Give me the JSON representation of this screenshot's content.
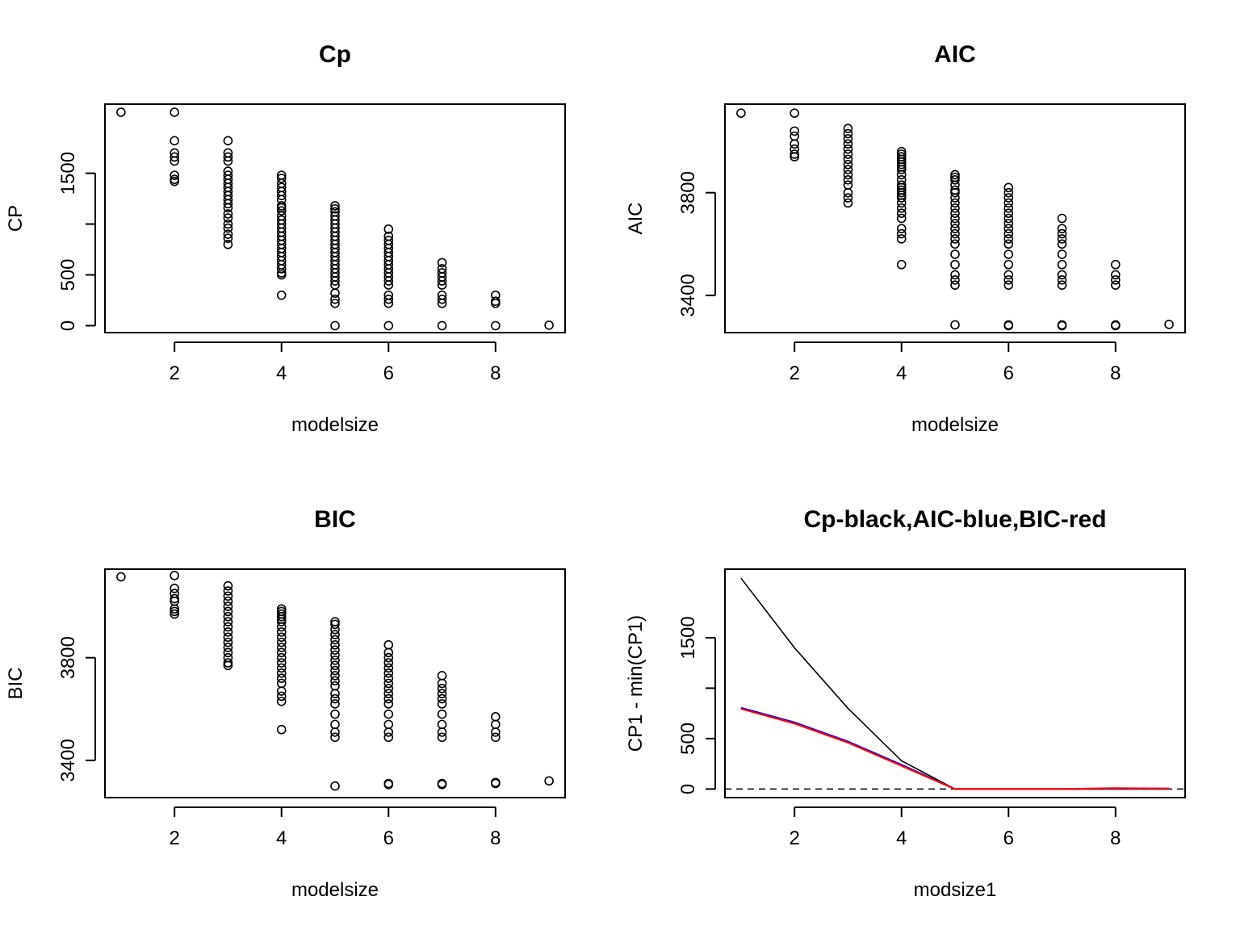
{
  "chart_data": [
    {
      "type": "scatter",
      "title": "Cp",
      "xlabel": "modelsize",
      "ylabel": "CP",
      "xlim": [
        0.7,
        9.3
      ],
      "ylim": [
        -68,
        2180
      ],
      "xticks": [
        "2",
        "4",
        "6",
        "8"
      ],
      "yticks": [
        "0",
        "500",
        "1500"
      ],
      "points": [
        {
          "x": 1,
          "y": [
            2100
          ]
        },
        {
          "x": 2,
          "y": [
            2100,
            1820,
            1700,
            1660,
            1620,
            1480,
            1440,
            1420
          ]
        },
        {
          "x": 3,
          "y": [
            1820,
            1700,
            1660,
            1620,
            1520,
            1480,
            1440,
            1400,
            1360,
            1320,
            1280,
            1240,
            1200,
            1160,
            1100,
            1060,
            1000,
            960,
            900,
            860,
            800
          ]
        },
        {
          "x": 4,
          "y": [
            1480,
            1450,
            1400,
            1360,
            1320,
            1280,
            1240,
            1180,
            1160,
            1130,
            1080,
            1040,
            1000,
            960,
            920,
            880,
            840,
            800,
            760,
            720,
            680,
            640,
            600,
            560,
            520,
            500,
            300
          ]
        },
        {
          "x": 5,
          "y": [
            1180,
            1150,
            1120,
            1080,
            1040,
            1000,
            960,
            920,
            880,
            840,
            800,
            760,
            720,
            680,
            640,
            600,
            560,
            520,
            480,
            440,
            400,
            320,
            260,
            220,
            0
          ]
        },
        {
          "x": 6,
          "y": [
            950,
            880,
            840,
            800,
            760,
            720,
            680,
            640,
            600,
            560,
            520,
            480,
            440,
            400,
            300,
            260,
            220,
            0
          ]
        },
        {
          "x": 7,
          "y": [
            620,
            560,
            520,
            480,
            440,
            400,
            300,
            260,
            220,
            0
          ]
        },
        {
          "x": 8,
          "y": [
            300,
            240,
            220,
            0
          ]
        },
        {
          "x": 9,
          "y": [
            5
          ]
        }
      ]
    },
    {
      "type": "scatter",
      "title": "AIC",
      "xlabel": "modelsize",
      "ylabel": "AIC",
      "xlim": [
        0.7,
        9.3
      ],
      "ylim": [
        3255,
        4145
      ],
      "xticks": [
        "2",
        "4",
        "6",
        "8"
      ],
      "yticks": [
        "3400",
        "3800"
      ],
      "points": [
        {
          "x": 1,
          "y": [
            4110
          ]
        },
        {
          "x": 2,
          "y": [
            4110,
            4040,
            4020,
            3990,
            3970,
            3950,
            3940
          ]
        },
        {
          "x": 3,
          "y": [
            4050,
            4030,
            4010,
            3990,
            3970,
            3950,
            3930,
            3910,
            3890,
            3870,
            3850,
            3830,
            3800,
            3780,
            3760
          ]
        },
        {
          "x": 4,
          "y": [
            3960,
            3950,
            3940,
            3930,
            3920,
            3910,
            3900,
            3890,
            3870,
            3850,
            3830,
            3820,
            3810,
            3800,
            3790,
            3780,
            3760,
            3740,
            3720,
            3700,
            3660,
            3640,
            3620,
            3520
          ]
        },
        {
          "x": 5,
          "y": [
            3870,
            3860,
            3850,
            3830,
            3810,
            3800,
            3780,
            3760,
            3740,
            3720,
            3700,
            3680,
            3660,
            3640,
            3620,
            3600,
            3560,
            3520,
            3480,
            3460,
            3440,
            3285
          ]
        },
        {
          "x": 6,
          "y": [
            3820,
            3800,
            3780,
            3760,
            3740,
            3720,
            3700,
            3680,
            3660,
            3640,
            3620,
            3600,
            3560,
            3520,
            3480,
            3460,
            3440,
            3285,
            3282
          ]
        },
        {
          "x": 7,
          "y": [
            3700,
            3660,
            3640,
            3620,
            3600,
            3560,
            3520,
            3480,
            3460,
            3440,
            3285,
            3282
          ]
        },
        {
          "x": 8,
          "y": [
            3520,
            3480,
            3460,
            3440,
            3285,
            3282
          ]
        },
        {
          "x": 9,
          "y": [
            3287
          ]
        }
      ]
    },
    {
      "type": "scatter",
      "title": "BIC",
      "xlabel": "modelsize",
      "ylabel": "BIC",
      "xlim": [
        0.7,
        9.3
      ],
      "ylim": [
        3255,
        4145
      ],
      "xticks": [
        "2",
        "4",
        "6",
        "8"
      ],
      "yticks": [
        "3400",
        "3800"
      ],
      "points": [
        {
          "x": 1,
          "y": [
            4115
          ]
        },
        {
          "x": 2,
          "y": [
            4120,
            4070,
            4050,
            4030,
            4020,
            3990,
            3980,
            3970
          ]
        },
        {
          "x": 3,
          "y": [
            4080,
            4060,
            4040,
            4020,
            4000,
            3980,
            3960,
            3940,
            3920,
            3900,
            3880,
            3860,
            3840,
            3820,
            3800,
            3780,
            3770
          ]
        },
        {
          "x": 4,
          "y": [
            3990,
            3980,
            3970,
            3960,
            3950,
            3940,
            3920,
            3900,
            3880,
            3860,
            3840,
            3820,
            3800,
            3780,
            3760,
            3740,
            3720,
            3700,
            3670,
            3650,
            3630,
            3520
          ]
        },
        {
          "x": 5,
          "y": [
            3940,
            3930,
            3910,
            3890,
            3870,
            3850,
            3830,
            3810,
            3790,
            3770,
            3750,
            3730,
            3710,
            3690,
            3660,
            3640,
            3620,
            3580,
            3540,
            3510,
            3490,
            3300
          ]
        },
        {
          "x": 6,
          "y": [
            3850,
            3820,
            3800,
            3780,
            3760,
            3740,
            3720,
            3700,
            3680,
            3660,
            3640,
            3620,
            3580,
            3540,
            3510,
            3490,
            3310,
            3306
          ]
        },
        {
          "x": 7,
          "y": [
            3730,
            3700,
            3680,
            3660,
            3640,
            3620,
            3580,
            3540,
            3510,
            3490,
            3310,
            3306
          ]
        },
        {
          "x": 8,
          "y": [
            3570,
            3540,
            3510,
            3490,
            3314,
            3310
          ]
        },
        {
          "x": 9,
          "y": [
            3320
          ]
        }
      ]
    },
    {
      "type": "line",
      "title": "Cp-black,AIC-blue,BIC-red",
      "xlabel": "modsize1",
      "ylabel": "CP1 - min(CP1)",
      "xlim": [
        0.7,
        9.3
      ],
      "ylim": [
        -85,
        2180
      ],
      "xticks": [
        "2",
        "4",
        "6",
        "8"
      ],
      "yticks": [
        "0",
        "500",
        "1500"
      ],
      "x": [
        1,
        2,
        3,
        4,
        5,
        6,
        7,
        8,
        9
      ],
      "series": [
        {
          "color": "#000000",
          "values": [
            2090,
            1400,
            800,
            280,
            0,
            0,
            0,
            0,
            0
          ]
        },
        {
          "color": "#0000ff",
          "values": [
            805,
            660,
            470,
            240,
            0,
            0,
            0,
            5,
            5
          ]
        },
        {
          "color": "#ff0000",
          "values": [
            795,
            650,
            460,
            230,
            0,
            0,
            0,
            8,
            5
          ]
        }
      ],
      "hline": {
        "y": 0,
        "style": "dashed"
      }
    }
  ]
}
